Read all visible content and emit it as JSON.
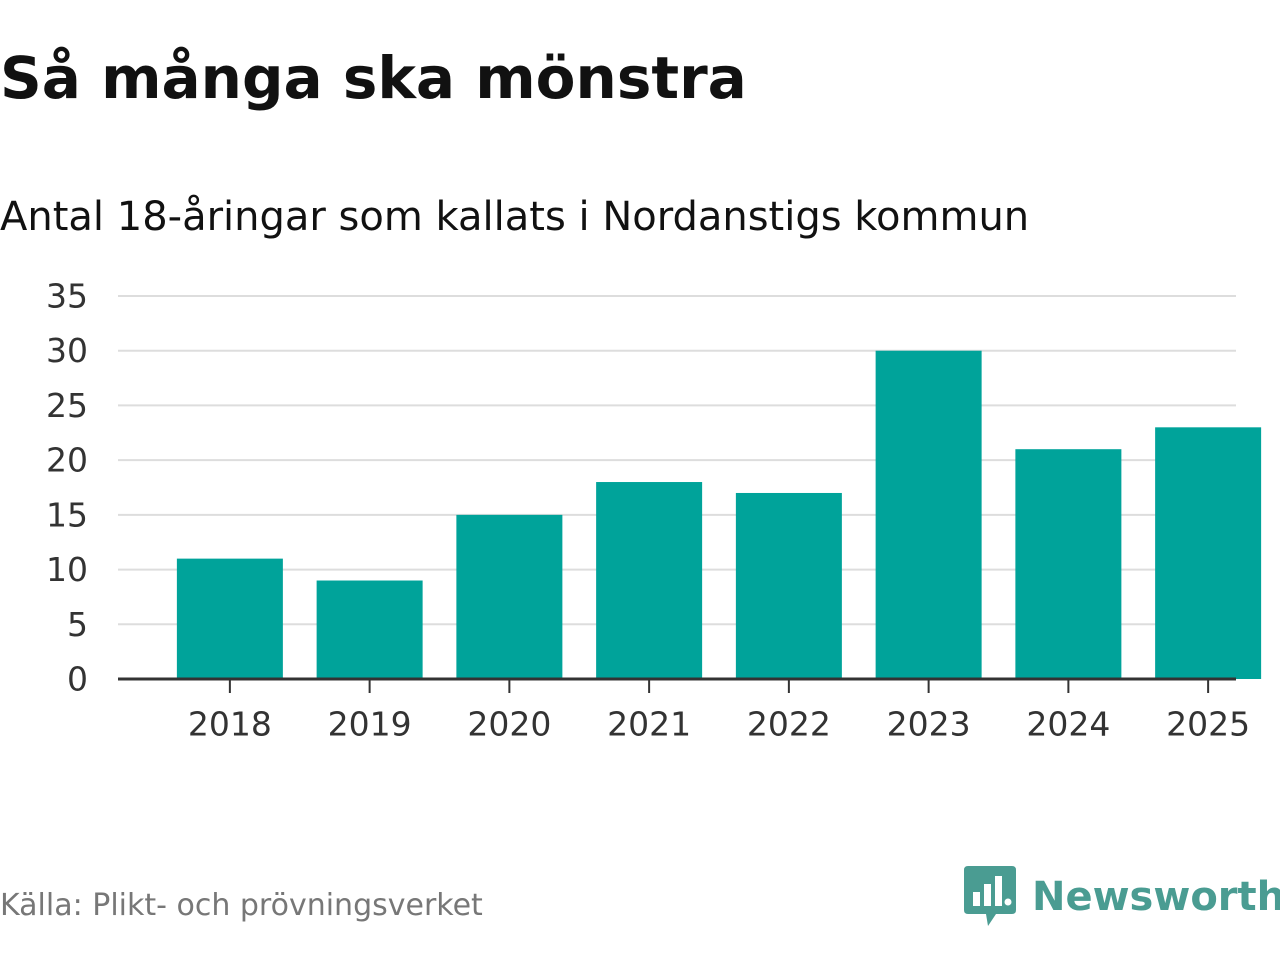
{
  "title": "Så många ska mönstra",
  "subtitle": "Antal 18-åringar som kallats i Nordanstigs kommun",
  "source": "Källa: Plikt- och prövningsverket",
  "brand": {
    "name": "Newsworthy",
    "icon": "newsworthy-logo-icon",
    "color": "#4a9c92"
  },
  "chart_data": {
    "type": "bar",
    "categories": [
      "2018",
      "2019",
      "2020",
      "2021",
      "2022",
      "2023",
      "2024",
      "2025"
    ],
    "values": [
      11,
      9,
      15,
      18,
      17,
      30,
      21,
      23
    ],
    "title": "Så många ska mönstra",
    "subtitle": "Antal 18-åringar som kallats i Nordanstigs kommun",
    "xlabel": "",
    "ylabel": "",
    "ylim": [
      0,
      35
    ],
    "yticks": [
      0,
      5,
      10,
      15,
      20,
      25,
      30,
      35
    ],
    "grid": true,
    "legend": "none",
    "bar_color": "#00a39a",
    "grid_color": "#dddddd",
    "axis_color": "#333333"
  }
}
